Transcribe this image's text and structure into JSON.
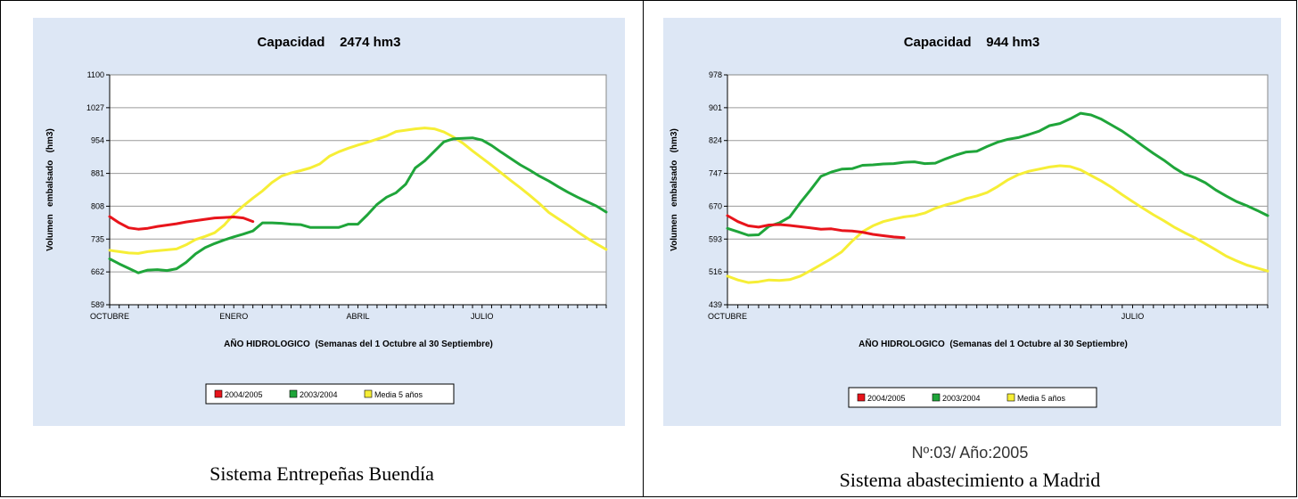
{
  "charts": [
    {
      "title": "Capacidad    2474 hm3",
      "caption": "Sistema Entrepeñas Buendía",
      "chart_data": {
        "type": "line",
        "ylabel": "Volumen   embalsado   (hm3)",
        "xlabel": "AÑO HIDROLOGICO  (Semanas del 1 Octubre al 30 Septiembre)",
        "ylim": [
          589,
          1100
        ],
        "yticks": [
          "1100",
          "1027",
          "954",
          "881",
          "808",
          "735",
          "662",
          "589"
        ],
        "x_range": [
          0,
          52
        ],
        "xticks": [
          {
            "week": 0,
            "label": "OCTUBRE"
          },
          {
            "week": 13,
            "label": "ENERO"
          },
          {
            "week": 26,
            "label": "ABRIL"
          },
          {
            "week": 39,
            "label": "JULIO"
          }
        ],
        "grid": true,
        "legend_position": "bottom",
        "series": [
          {
            "name": "2004/2005",
            "color": "#e8141b",
            "x": [
              0,
              1,
              2,
              3,
              4,
              5,
              6,
              7,
              8,
              9,
              10,
              11,
              12,
              13,
              14,
              15
            ],
            "y": [
              785,
              771,
              760,
              757,
              759,
              763,
              766,
              769,
              773,
              776,
              779,
              782,
              783,
              784,
              782,
              774
            ]
          },
          {
            "name": "2003/2004",
            "color": "#1fa53a",
            "x": [
              0,
              1,
              2,
              3,
              4,
              5,
              6,
              7,
              8,
              9,
              10,
              11,
              12,
              13,
              14,
              15,
              16,
              17,
              18,
              19,
              20,
              21,
              22,
              23,
              24,
              25,
              26,
              27,
              28,
              29,
              30,
              31,
              32,
              33,
              34,
              35,
              36,
              37,
              38,
              39,
              40,
              41,
              42,
              43,
              44,
              45,
              46,
              47,
              48,
              49,
              50,
              51,
              52
            ],
            "y": [
              691,
              680,
              670,
              660,
              666,
              667,
              665,
              669,
              683,
              702,
              716,
              725,
              733,
              740,
              746,
              753,
              771,
              771,
              770,
              768,
              767,
              761,
              761,
              761,
              761,
              768,
              768,
              789,
              812,
              828,
              838,
              857,
              893,
              909,
              930,
              951,
              958,
              959,
              960,
              955,
              943,
              928,
              914,
              900,
              888,
              875,
              864,
              851,
              839,
              828,
              818,
              808,
              795
            ]
          },
          {
            "name": "Media 5 años",
            "color": "#f6ee36",
            "x": [
              0,
              1,
              2,
              3,
              4,
              5,
              6,
              7,
              8,
              9,
              10,
              11,
              12,
              13,
              14,
              15,
              16,
              17,
              18,
              19,
              20,
              21,
              22,
              23,
              24,
              25,
              26,
              27,
              28,
              29,
              30,
              31,
              32,
              33,
              34,
              35,
              36,
              37,
              38,
              39,
              40,
              41,
              42,
              43,
              44,
              45,
              46,
              47,
              48,
              49,
              50,
              51,
              52
            ],
            "y": [
              710,
              707,
              704,
              703,
              707,
              709,
              711,
              713,
              722,
              734,
              741,
              749,
              766,
              790,
              809,
              826,
              842,
              861,
              875,
              882,
              887,
              893,
              902,
              919,
              929,
              937,
              944,
              950,
              957,
              964,
              974,
              977,
              980,
              982,
              980,
              973,
              962,
              948,
              931,
              915,
              899,
              882,
              865,
              849,
              832,
              814,
              794,
              780,
              766,
              751,
              737,
              724,
              712
            ]
          }
        ]
      }
    },
    {
      "title": "Capacidad    944 hm3",
      "subcaption": "Nº:03/ Año:2005",
      "caption": "Sistema abastecimiento a Madrid",
      "chart_data": {
        "type": "line",
        "ylabel": "Volumen   embalsado   (hm3)",
        "xlabel": "AÑO HIDROLOGICO  (Semanas del 1 Octubre al 30 Septiembre)",
        "ylim": [
          439,
          978
        ],
        "yticks": [
          "978",
          "901",
          "824",
          "747",
          "670",
          "593",
          "516",
          "439"
        ],
        "x_range": [
          0,
          52
        ],
        "xticks": [
          {
            "week": 0,
            "label": "OCTUBRE"
          },
          {
            "week": 39,
            "label": "JULIO"
          }
        ],
        "grid": true,
        "legend_position": "bottom",
        "series": [
          {
            "name": "2004/2005",
            "color": "#e8141b",
            "x": [
              0,
              1,
              2,
              3,
              4,
              5,
              6,
              7,
              8,
              9,
              10,
              11,
              12,
              13,
              14,
              15,
              16,
              17
            ],
            "y": [
              648,
              634,
              624,
              621,
              626,
              627,
              625,
              622,
              619,
              616,
              617,
              613,
              612,
              609,
              604,
              601,
              598,
              596
            ]
          },
          {
            "name": "2003/2004",
            "color": "#1fa53a",
            "x": [
              0,
              1,
              2,
              3,
              4,
              5,
              6,
              7,
              8,
              9,
              10,
              11,
              12,
              13,
              14,
              15,
              16,
              17,
              18,
              19,
              20,
              21,
              22,
              23,
              24,
              25,
              26,
              27,
              28,
              29,
              30,
              31,
              32,
              33,
              34,
              35,
              36,
              37,
              38,
              39,
              40,
              41,
              42,
              43,
              44,
              45,
              46,
              47,
              48,
              49,
              50,
              51,
              52
            ],
            "y": [
              618,
              610,
              602,
              603,
              623,
              631,
              645,
              678,
              708,
              740,
              750,
              757,
              758,
              766,
              767,
              769,
              770,
              773,
              774,
              770,
              771,
              781,
              790,
              797,
              799,
              810,
              820,
              827,
              831,
              838,
              846,
              859,
              864,
              875,
              888,
              884,
              874,
              860,
              846,
              829,
              811,
              794,
              778,
              760,
              745,
              737,
              725,
              708,
              694,
              681,
              671,
              660,
              648
            ]
          },
          {
            "name": "Media 5 años",
            "color": "#f6ee36",
            "x": [
              0,
              1,
              2,
              3,
              4,
              5,
              6,
              7,
              8,
              9,
              10,
              11,
              12,
              13,
              14,
              15,
              16,
              17,
              18,
              19,
              20,
              21,
              22,
              23,
              24,
              25,
              26,
              27,
              28,
              29,
              30,
              31,
              32,
              33,
              34,
              35,
              36,
              37,
              38,
              39,
              40,
              41,
              42,
              43,
              44,
              45,
              46,
              47,
              48,
              49,
              50,
              51,
              52
            ],
            "y": [
              506,
              497,
              491,
              493,
              497,
              496,
              498,
              506,
              519,
              533,
              547,
              563,
              588,
              610,
              624,
              634,
              640,
              645,
              648,
              654,
              665,
              673,
              679,
              688,
              694,
              702,
              716,
              732,
              744,
              752,
              757,
              762,
              765,
              763,
              755,
              742,
              729,
              714,
              697,
              681,
              665,
              650,
              636,
              621,
              608,
              596,
              582,
              568,
              553,
              542,
              532,
              525,
              518
            ]
          }
        ]
      }
    }
  ]
}
